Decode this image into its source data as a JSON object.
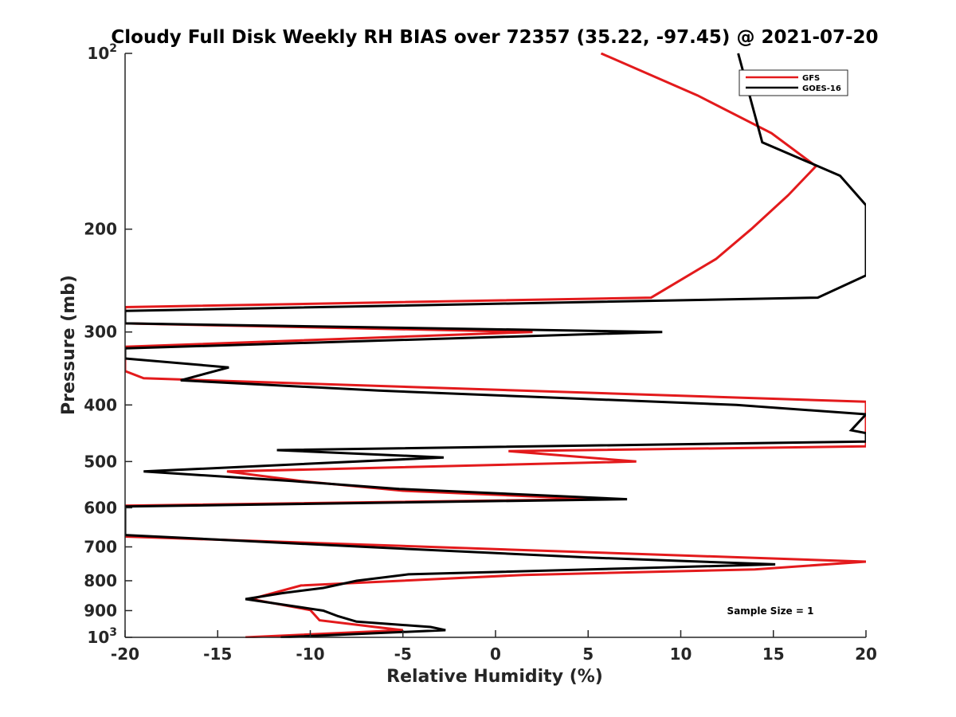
{
  "chart_data": {
    "type": "line",
    "title": "Cloudy Full Disk Weekly RH BIAS over 72357 (35.22, -97.45) @ 2021-07-20",
    "xlabel": "Relative Humidity (%)",
    "ylabel": "Pressure (mb)",
    "xlim": [
      -20,
      20
    ],
    "ylim": [
      100,
      1000
    ],
    "y_scale": "log",
    "y_reversed": true,
    "grid": false,
    "legend_position": "top-right",
    "x_ticks": [
      "-20",
      "-15",
      "-10",
      "-5",
      "0",
      "5",
      "10",
      "15",
      "20"
    ],
    "y_ticks": [
      {
        "value": 100,
        "base": "10",
        "exp": "2"
      },
      {
        "value": 200,
        "label": "200"
      },
      {
        "value": 300,
        "label": "300"
      },
      {
        "value": 400,
        "label": "400"
      },
      {
        "value": 500,
        "label": "500"
      },
      {
        "value": 600,
        "label": "600"
      },
      {
        "value": 700,
        "label": "700"
      },
      {
        "value": 800,
        "label": "800"
      },
      {
        "value": 900,
        "label": "900"
      },
      {
        "value": 1000,
        "base": "10",
        "exp": "3"
      }
    ],
    "series": [
      {
        "name": "GFS",
        "color": "#e31a1c",
        "points": [
          [
            5.7,
            100
          ],
          [
            10.9,
            118
          ],
          [
            14.9,
            137
          ],
          [
            17.3,
            156
          ],
          [
            15.8,
            175
          ],
          [
            13.8,
            200
          ],
          [
            11.9,
            225
          ],
          [
            8.4,
            262
          ],
          [
            -20,
            272
          ],
          [
            -20,
            290
          ],
          [
            2.0,
            300
          ],
          [
            -20,
            318
          ],
          [
            -20,
            350
          ],
          [
            -19.0,
            360
          ],
          [
            20,
            395
          ],
          [
            20,
            471
          ],
          [
            0.7,
            480
          ],
          [
            7.6,
            500
          ],
          [
            -14.5,
            520
          ],
          [
            -10.5,
            540
          ],
          [
            -5.0,
            561
          ],
          [
            5.5,
            580
          ],
          [
            -20,
            595
          ],
          [
            -20,
            672
          ],
          [
            20,
            742
          ],
          [
            14.0,
            765
          ],
          [
            1.5,
            782
          ],
          [
            -10.5,
            815
          ],
          [
            -13.2,
            860
          ],
          [
            -11.5,
            880
          ],
          [
            -10.0,
            898
          ],
          [
            -9.5,
            935
          ],
          [
            -6.5,
            960
          ],
          [
            -5.0,
            972
          ],
          [
            -13.5,
            1000
          ]
        ]
      },
      {
        "name": "GOES-16",
        "color": "#000000",
        "points": [
          [
            13.1,
            100
          ],
          [
            14.4,
            142
          ],
          [
            18.6,
            162
          ],
          [
            20,
            182
          ],
          [
            20,
            240
          ],
          [
            17.4,
            262
          ],
          [
            -20,
            276
          ],
          [
            -20,
            290
          ],
          [
            9.0,
            300
          ],
          [
            -20,
            320
          ],
          [
            -20,
            333
          ],
          [
            -14.4,
            345
          ],
          [
            -17.0,
            363
          ],
          [
            -6.3,
            378
          ],
          [
            13.0,
            400
          ],
          [
            20,
            415
          ],
          [
            19.2,
            442
          ],
          [
            20,
            447
          ],
          [
            20,
            462
          ],
          [
            -11.8,
            478
          ],
          [
            -2.8,
            492
          ],
          [
            -19.0,
            520
          ],
          [
            -11.0,
            540
          ],
          [
            -5.2,
            557
          ],
          [
            7.1,
            580
          ],
          [
            -20,
            597
          ],
          [
            -20,
            668
          ],
          [
            -7.0,
            700
          ],
          [
            5.0,
            730
          ],
          [
            15.1,
            750
          ],
          [
            8.5,
            760
          ],
          [
            -4.7,
            780
          ],
          [
            -7.5,
            800
          ],
          [
            -9.3,
            823
          ],
          [
            -11.5,
            840
          ],
          [
            -13.5,
            860
          ],
          [
            -12.0,
            874
          ],
          [
            -9.3,
            900
          ],
          [
            -8.5,
            920
          ],
          [
            -7.5,
            940
          ],
          [
            -3.5,
            960
          ],
          [
            -2.7,
            972
          ],
          [
            -11.6,
            1000
          ]
        ]
      }
    ],
    "annotation": "Sample Size = 1"
  }
}
